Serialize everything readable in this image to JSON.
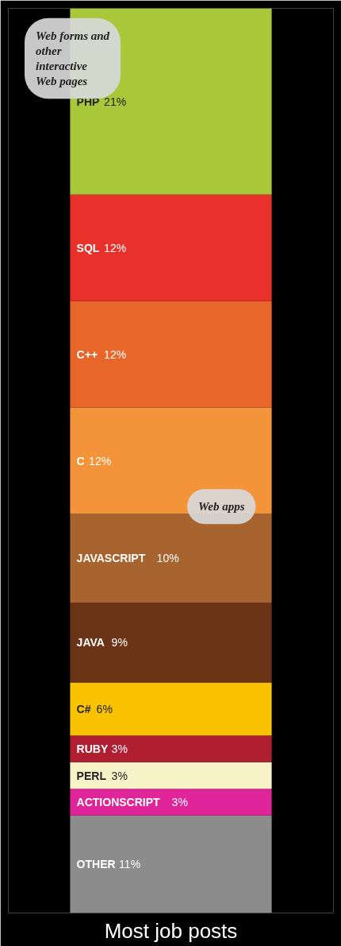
{
  "chart_data": {
    "type": "bar",
    "stacked": true,
    "title": "Most job posts",
    "categories": [
      null
    ],
    "series": [
      {
        "name": "OTHER",
        "color": "#8c8c8c",
        "values": [
          11
        ],
        "value_labels": [
          "11%"
        ]
      },
      {
        "name": "ACTIONSCRIPT",
        "color": "#e0249a",
        "values": [
          3
        ],
        "value_labels": [
          "3%"
        ]
      },
      {
        "name": "PERL",
        "color": "#f8f2c8",
        "values": [
          3
        ],
        "value_labels": [
          "3%"
        ]
      },
      {
        "name": "RUBY",
        "color": "#b01e32",
        "values": [
          3
        ],
        "value_labels": [
          "3%"
        ]
      },
      {
        "name": "C#",
        "color": "#f8c200",
        "values": [
          6
        ],
        "value_labels": [
          "6%"
        ]
      },
      {
        "name": "JAVA",
        "color": "#6b3416",
        "values": [
          9
        ],
        "value_labels": [
          "9%"
        ]
      },
      {
        "name": "JAVASCRIPT",
        "color": "#a8642e",
        "values": [
          10
        ],
        "value_labels": [
          "10%"
        ]
      },
      {
        "name": "C",
        "color": "#f4943a",
        "values": [
          12
        ],
        "value_labels": [
          "12%"
        ]
      },
      {
        "name": "C++",
        "color": "#e8662a",
        "values": [
          12
        ],
        "value_labels": [
          "12%"
        ]
      },
      {
        "name": "SQL",
        "color": "#e8312a",
        "values": [
          12
        ],
        "value_labels": [
          "12%"
        ]
      },
      {
        "name": "PHP",
        "color": "#a8c83a",
        "values": [
          21
        ],
        "value_labels": [
          "21%"
        ]
      }
    ],
    "annotations": [
      "Web forms and other interactive Web pages",
      "Web apps"
    ]
  }
}
